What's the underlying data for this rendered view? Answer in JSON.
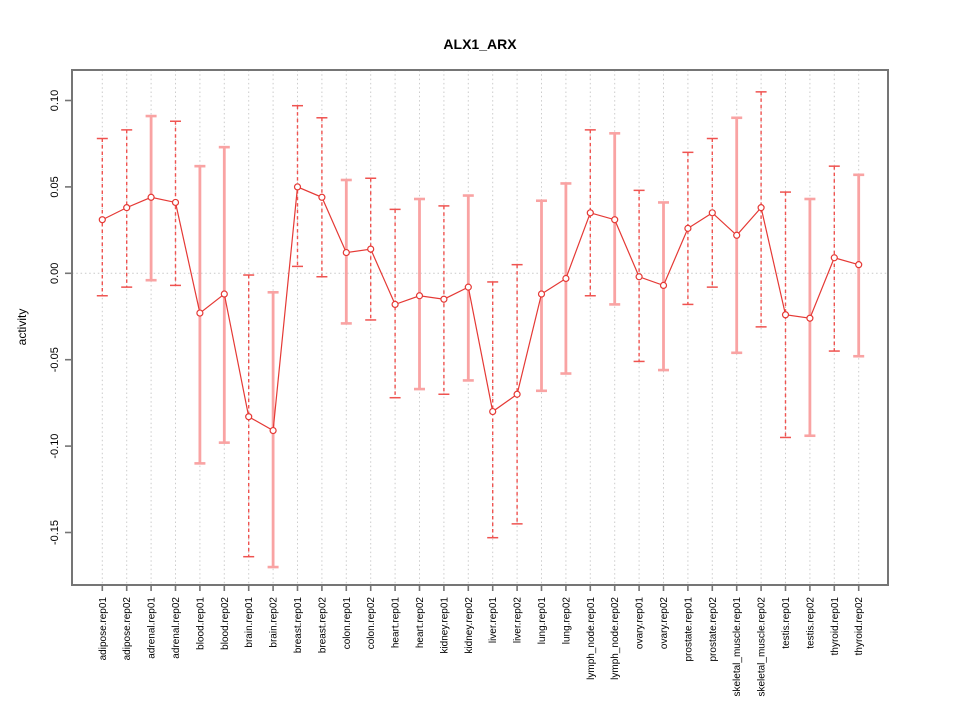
{
  "chart_data": {
    "type": "scatter",
    "title": "ALX1_ARX",
    "xlabel": "",
    "ylabel": "activity",
    "ylim": [
      -0.18,
      0.118
    ],
    "yticks": [
      0.1,
      0.05,
      0.0,
      -0.05,
      -0.1,
      -0.15
    ],
    "ytick_labels": [
      "0.10",
      "0.05",
      "0.00",
      "-0.05",
      "-0.10",
      "-0.15"
    ],
    "grid": {
      "vertical_dotted_per_category": true,
      "horizontal": "dotted zero line only"
    },
    "legend": null,
    "categories": [
      "adipose.rep01",
      "adipose.rep02",
      "adrenal.rep01",
      "adrenal.rep02",
      "blood.rep01",
      "blood.rep02",
      "brain.rep01",
      "brain.rep02",
      "breast.rep01",
      "breast.rep02",
      "colon.rep01",
      "colon.rep02",
      "heart.rep01",
      "heart.rep02",
      "kidney.rep01",
      "kidney.rep02",
      "liver.rep01",
      "liver.rep02",
      "lung.rep01",
      "lung.rep02",
      "lymph_node.rep01",
      "lymph_node.rep02",
      "ovary.rep01",
      "ovary.rep02",
      "prostate.rep01",
      "prostate.rep02",
      "skeletal_muscle.rep01",
      "skeletal_muscle.rep02",
      "testis.rep01",
      "testis.rep02",
      "thyroid.rep01",
      "thyroid.rep02"
    ],
    "series": [
      {
        "name": "activity",
        "marker": "open-circle",
        "connect_points": true,
        "means": [
          0.031,
          0.038,
          0.044,
          0.041,
          -0.023,
          -0.012,
          -0.083,
          -0.091,
          0.05,
          0.044,
          0.012,
          0.014,
          -0.018,
          -0.013,
          -0.015,
          -0.008,
          -0.08,
          -0.07,
          -0.012,
          -0.003,
          0.035,
          0.031,
          -0.002,
          -0.007,
          0.026,
          0.035,
          0.022,
          0.038,
          -0.024,
          -0.026,
          0.009,
          0.005
        ],
        "err_high": [
          0.078,
          0.083,
          0.091,
          0.088,
          0.062,
          0.073,
          -0.001,
          -0.011,
          0.097,
          0.09,
          0.054,
          0.055,
          0.037,
          0.043,
          0.039,
          0.045,
          -0.005,
          0.005,
          0.042,
          0.052,
          0.083,
          0.081,
          0.048,
          0.041,
          0.07,
          0.078,
          0.09,
          0.105,
          0.047,
          0.043,
          0.062,
          0.057
        ],
        "err_low": [
          -0.013,
          -0.008,
          -0.004,
          -0.007,
          -0.11,
          -0.098,
          -0.164,
          -0.17,
          0.004,
          -0.002,
          -0.029,
          -0.027,
          -0.072,
          -0.067,
          -0.07,
          -0.062,
          -0.153,
          -0.145,
          -0.068,
          -0.058,
          -0.013,
          -0.018,
          -0.051,
          -0.056,
          -0.018,
          -0.008,
          -0.046,
          -0.031,
          -0.095,
          -0.094,
          -0.045,
          -0.048
        ],
        "bar_styles": [
          "dashed",
          "dashed",
          "solid",
          "dashed",
          "solid",
          "solid",
          "dashed",
          "solid",
          "dashed",
          "dashed",
          "solid",
          "dashed",
          "dashed",
          "solid",
          "dashed",
          "solid",
          "dashed",
          "dashed",
          "solid",
          "solid",
          "dashed",
          "solid",
          "dashed",
          "solid",
          "dashed",
          "dashed",
          "solid",
          "dashed",
          "dashed",
          "solid",
          "dashed",
          "solid"
        ]
      }
    ]
  },
  "colors": {
    "series_line": "#e53935",
    "marker": "#e53935",
    "marker_fill": "#ffffff",
    "errorbar_dashed": "#ef5350",
    "errorbar_solid": "#f9a3a3",
    "gridline": "#cccccc",
    "zero_line": "#c9c9c9",
    "axis_box": "#757575",
    "label_text": "#000000",
    "background": "#ffffff"
  }
}
